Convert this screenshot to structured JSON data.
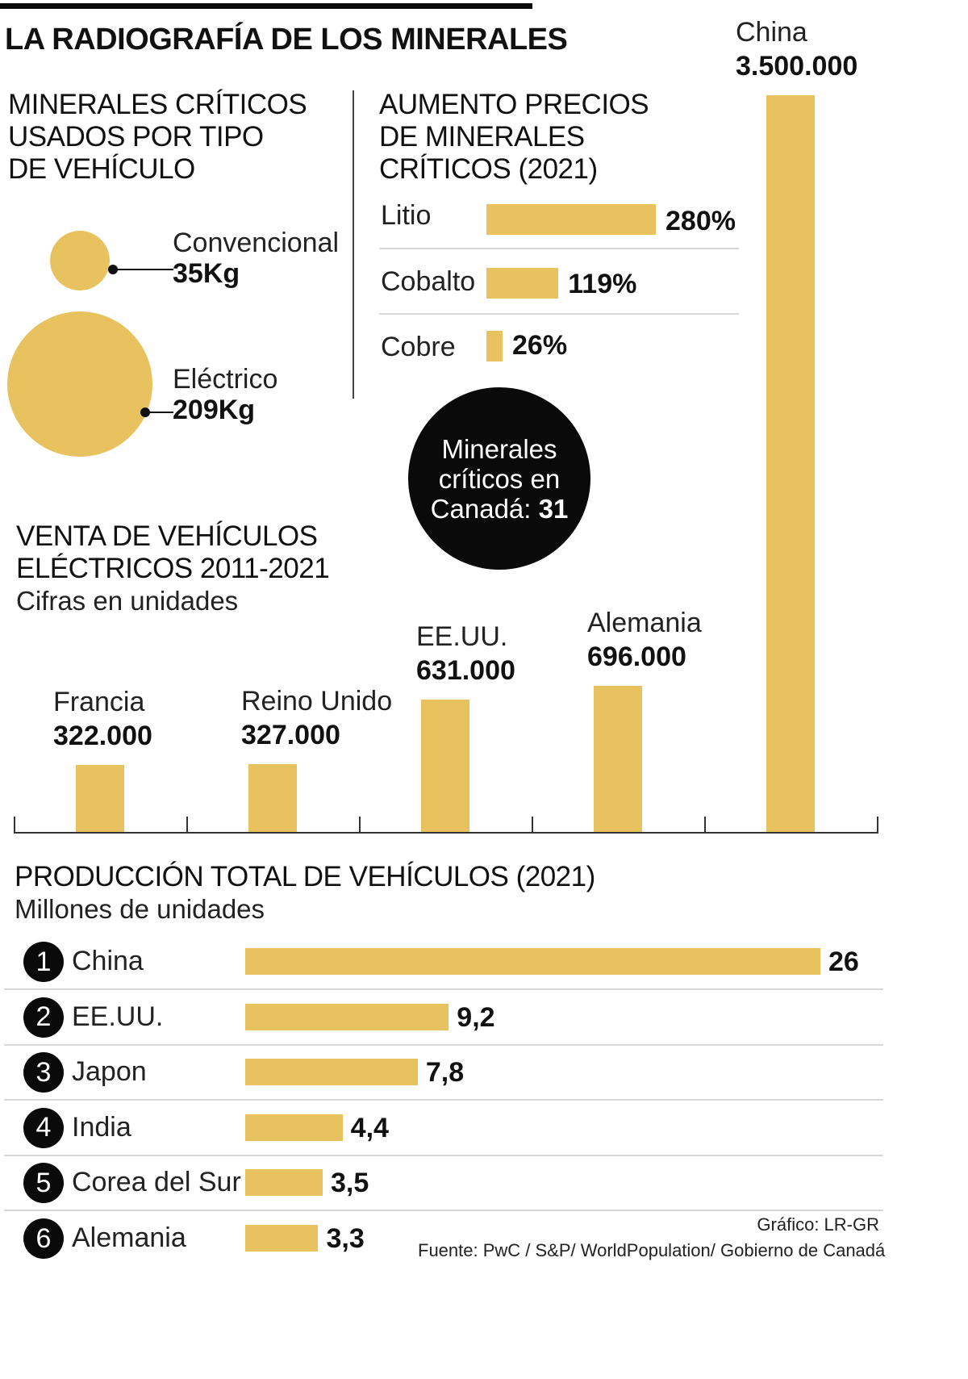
{
  "title": "LA RADIOGRAFÍA DE LOS MINERALES",
  "colors": {
    "bar": "#e8c25e",
    "ink": "#0a0a0a",
    "rule": "#d8d8d8"
  },
  "chart_data": [
    {
      "type": "bubble",
      "title_lines": [
        "MINERALES CRÍTICOS",
        "USADOS POR TIPO",
        "DE VEHÍCULO"
      ],
      "items": [
        {
          "label": "Convencional",
          "value_label": "35Kg",
          "value": 35
        },
        {
          "label": "Eléctrico",
          "value_label": "209Kg",
          "value": 209
        }
      ]
    },
    {
      "type": "bar",
      "orientation": "horizontal",
      "title_lines": [
        "AUMENTO PRECIOS",
        "DE MINERALES",
        "CRÍTICOS (2021)"
      ],
      "categories": [
        "Litio",
        "Cobalto",
        "Cobre"
      ],
      "values": [
        280,
        119,
        26
      ],
      "value_labels": [
        "280%",
        "119%",
        "26%"
      ]
    },
    {
      "type": "bar",
      "orientation": "vertical",
      "title_lines": [
        "VENTA DE VEHÍCULOS",
        "ELÉCTRICOS 2011-2021"
      ],
      "subtitle": "Cifras en unidades",
      "categories": [
        "Francia",
        "Reino Unido",
        "EE.UU.",
        "Alemania",
        "China"
      ],
      "values": [
        322000,
        327000,
        631000,
        696000,
        3500000
      ],
      "value_labels": [
        "322.000",
        "327.000",
        "631.000",
        "696.000",
        "3.500.000"
      ]
    },
    {
      "type": "bar",
      "orientation": "horizontal",
      "title": "PRODUCCIÓN TOTAL DE VEHÍCULOS (2021)",
      "subtitle": "Millones de unidades",
      "ranks": [
        "1",
        "2",
        "3",
        "4",
        "5",
        "6"
      ],
      "categories": [
        "China",
        "EE.UU.",
        "Japon",
        "India",
        "Corea del Sur",
        "Alemania"
      ],
      "values": [
        26,
        9.2,
        7.8,
        4.4,
        3.5,
        3.3
      ],
      "value_labels": [
        "26",
        "9,2",
        "7,8",
        "4,4",
        "3,5",
        "3,3"
      ]
    }
  ],
  "callout": {
    "line1": "Minerales",
    "line2": "críticos en",
    "line3": "Canadá:",
    "value": "31"
  },
  "credits": {
    "graphic": "Gráfico: LR-GR",
    "source": "Fuente: PwC / S&P/ WorldPopulation/ Gobierno de Canadá"
  }
}
